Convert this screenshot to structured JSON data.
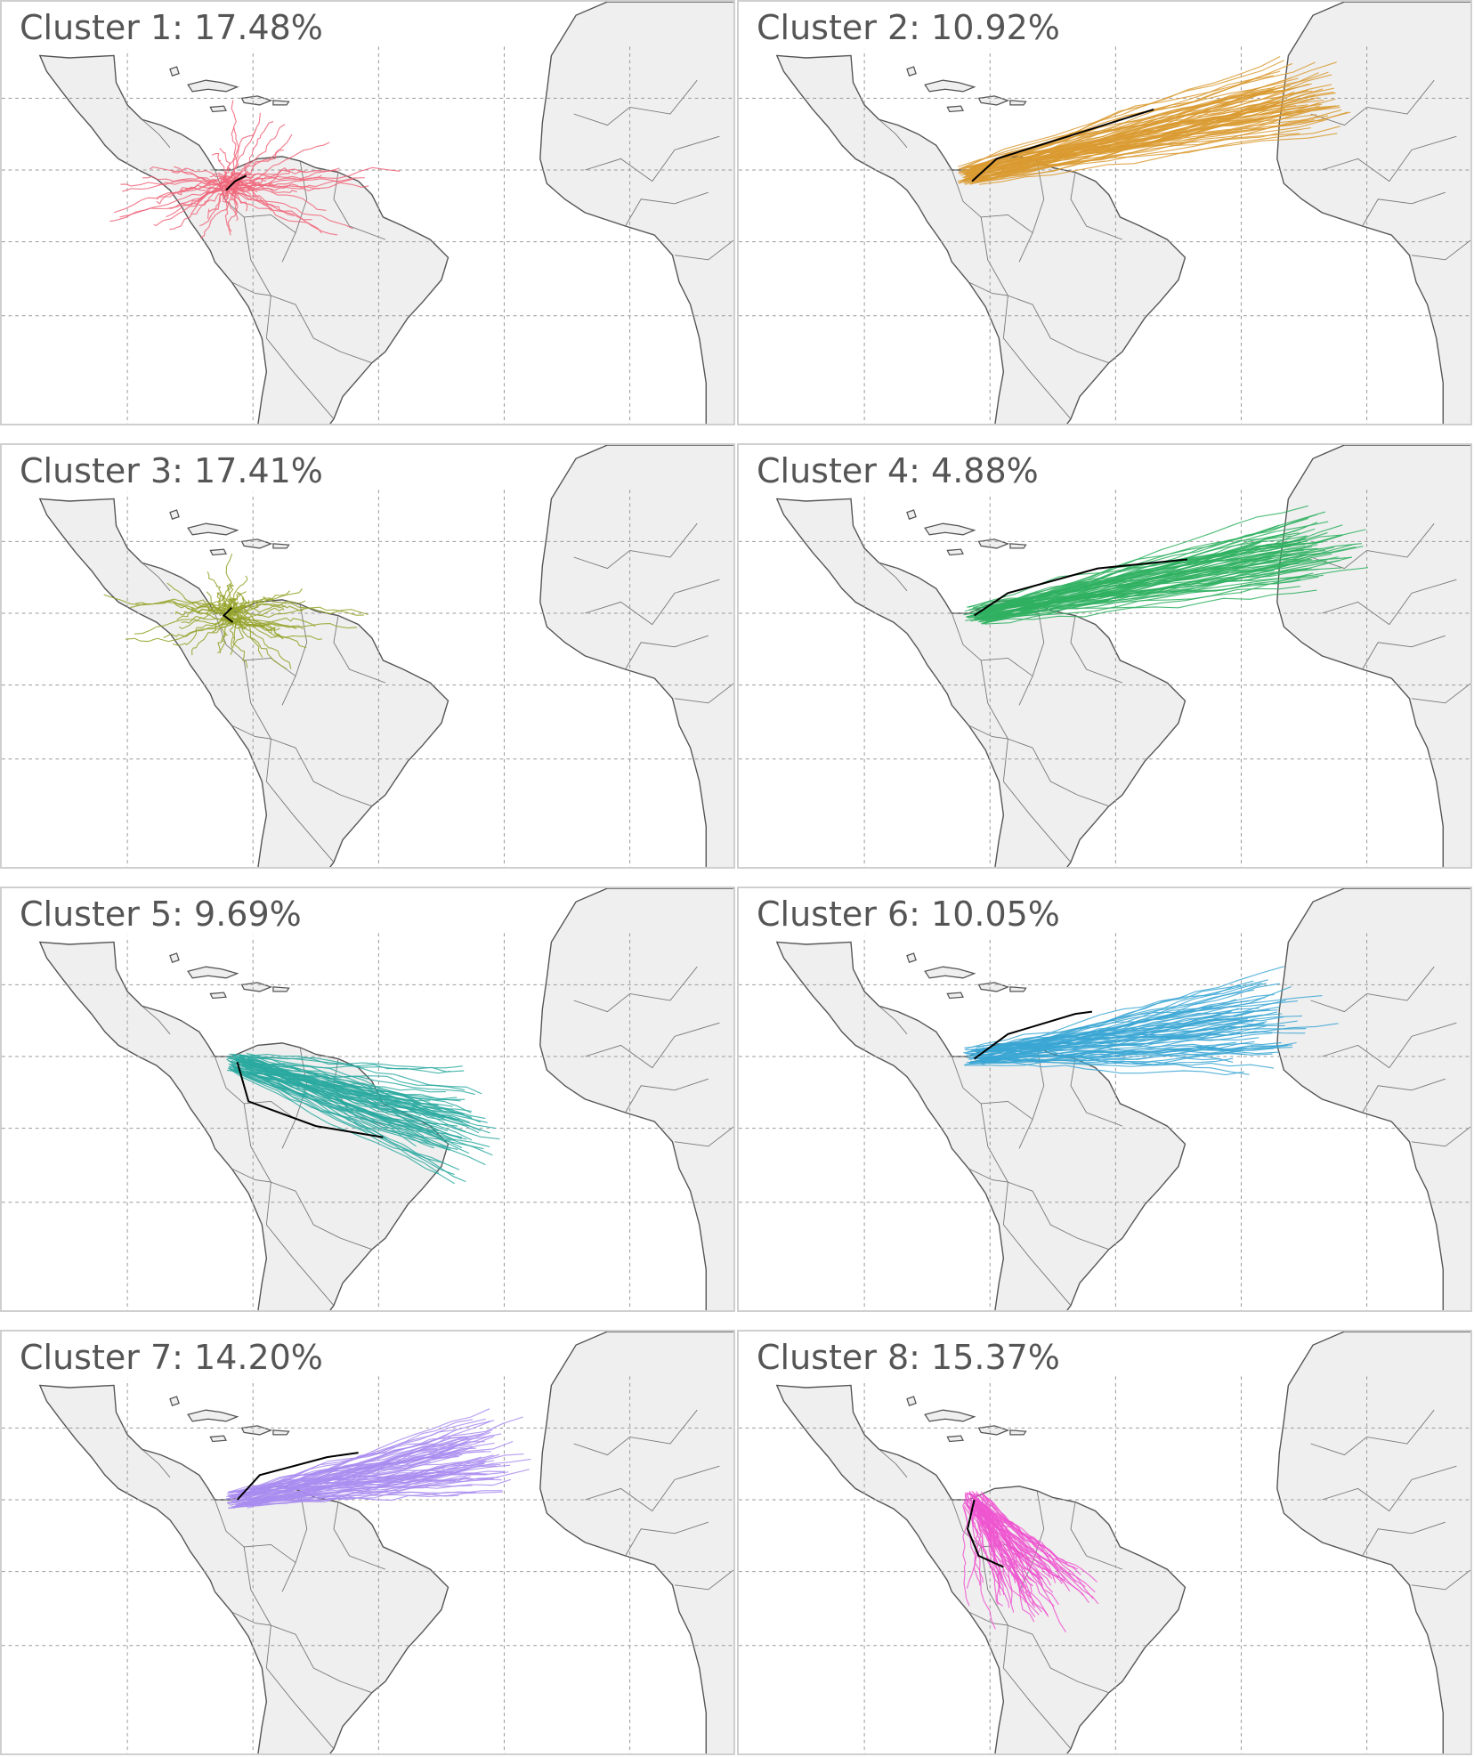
{
  "panels": [
    {
      "title": "Cluster 1: 17.48%",
      "color": "#f0667a",
      "shape": "cross"
    },
    {
      "title": "Cluster 2: 10.92%",
      "color": "#d99a30",
      "shape": "east"
    },
    {
      "title": "Cluster 3: 17.41%",
      "color": "#95a32a",
      "shape": "blob"
    },
    {
      "title": "Cluster 4: 4.88%",
      "color": "#2fb060",
      "shape": "east_north"
    },
    {
      "title": "Cluster 5: 9.69%",
      "color": "#2aa9a0",
      "shape": "southeast"
    },
    {
      "title": "Cluster 6: 10.05%",
      "color": "#3aa6d4",
      "shape": "east_fan"
    },
    {
      "title": "Cluster 7: 14.20%",
      "color": "#a98cf0",
      "shape": "east_mid"
    },
    {
      "title": "Cluster 8: 15.37%",
      "color": "#ee55d0",
      "shape": "south"
    }
  ],
  "land_color": "#efefef",
  "coast_color": "#555555",
  "mean_track_color": "#000000"
}
